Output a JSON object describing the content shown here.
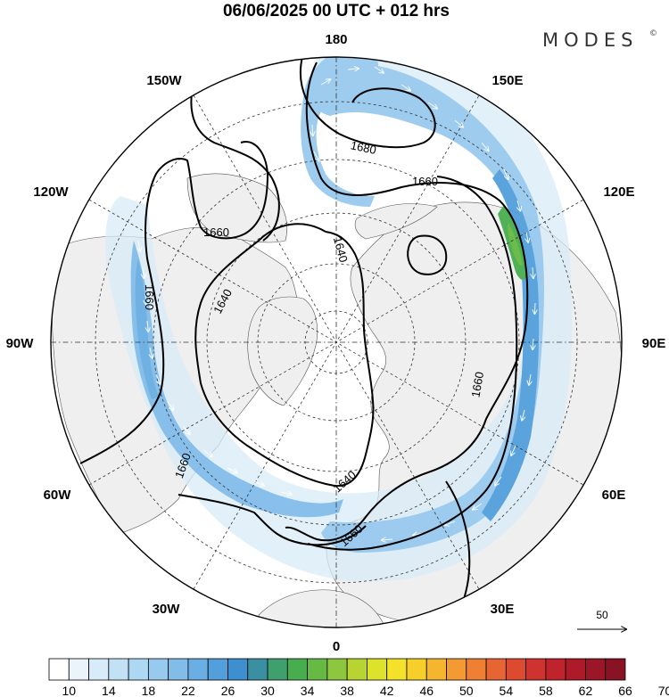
{
  "header": {
    "title": "06/06/2025  00 UTC  + 012 hrs",
    "brand": "MODES",
    "brand_mark": "©"
  },
  "map": {
    "projection": "north-polar-stereographic",
    "longitude_labels": {
      "top": "180",
      "top_left": "150W",
      "upper_left": "120W",
      "left": "90W",
      "lower_left": "60W",
      "bottom_left": "30W",
      "bottom": "0",
      "bottom_right": "30E",
      "lower_right": "60E",
      "right": "90E",
      "upper_right": "120E",
      "top_right": "150E"
    },
    "contour_labels": {
      "c1680": "1680",
      "c1660_upper_right": "1660",
      "c1660_upper_left": "1660",
      "c1660_left": "1660",
      "c1640_left": "1640",
      "c1640_top": "1640",
      "c1660_right": "1660",
      "c1660_lower_left": "1660",
      "c1640_bottom": "1640",
      "c1660_bottom": "1660"
    },
    "reference_vector": "50",
    "colors": {
      "land": "#efefef",
      "ocean": "#ffffff",
      "contour": "#000000"
    }
  },
  "colorbar": {
    "labels": [
      "10",
      "14",
      "18",
      "22",
      "26",
      "30",
      "34",
      "38",
      "42",
      "46",
      "50",
      "54",
      "58",
      "62",
      "66",
      "70"
    ],
    "colors": [
      "#ffffff",
      "#eaf4fb",
      "#d7ebf8",
      "#c3e1f5",
      "#aed7f3",
      "#98caef",
      "#82bdea",
      "#6aaee3",
      "#539fdb",
      "#3d8fd0",
      "#3a8fa0",
      "#3f9f6f",
      "#47ad4f",
      "#66ba44",
      "#8dc63f",
      "#b7d433",
      "#dde22a",
      "#f3e12a",
      "#f7cf2a",
      "#f6b52e",
      "#f39a32",
      "#ee7f33",
      "#e66532",
      "#dc4b30",
      "#cf332f",
      "#bf232c",
      "#ad1a2a",
      "#9a1628",
      "#8a1225"
    ]
  }
}
